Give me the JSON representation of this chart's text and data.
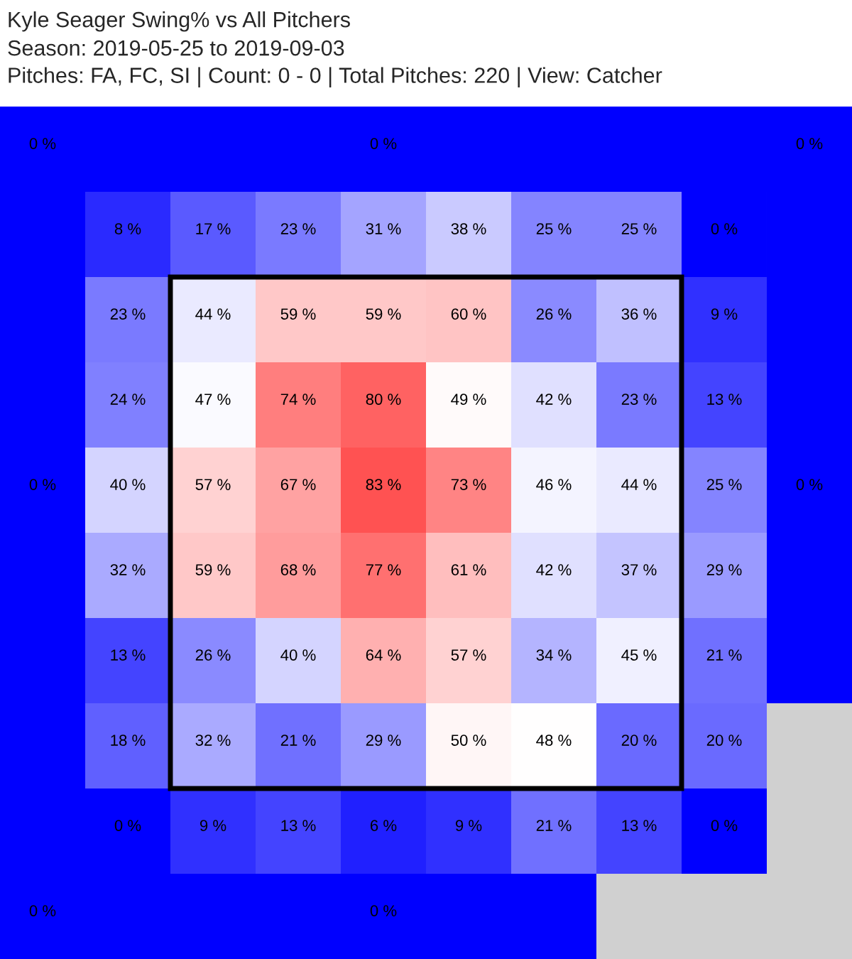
{
  "chart_data": {
    "type": "heatmap",
    "title": "Kyle Seager Swing% vs All Pitchers",
    "subtitle": "Season: 2019-05-25 to 2019-09-03\nPitches: FA, FC, SI | Count: 0 - 0 | Total Pitches: 220 | View: Catcher",
    "categories": [
      null,
      null,
      null,
      null,
      null,
      null,
      null,
      null,
      null,
      null
    ],
    "y_categories": [
      null,
      null,
      null,
      null,
      null,
      null,
      null,
      null,
      null,
      null
    ],
    "tick_labels": false,
    "cells": [
      [
        0,
        null,
        null,
        null,
        0,
        null,
        null,
        null,
        null,
        0
      ],
      [
        null,
        8,
        17,
        23,
        31,
        38,
        25,
        25,
        0,
        null
      ],
      [
        null,
        23,
        44,
        59,
        59,
        60,
        26,
        36,
        9,
        null
      ],
      [
        null,
        24,
        47,
        74,
        80,
        49,
        42,
        23,
        13,
        null
      ],
      [
        0,
        40,
        57,
        67,
        83,
        73,
        46,
        44,
        25,
        0
      ],
      [
        null,
        32,
        59,
        68,
        77,
        61,
        42,
        37,
        29,
        null
      ],
      [
        null,
        13,
        26,
        40,
        64,
        57,
        34,
        45,
        21,
        null
      ],
      [
        null,
        18,
        32,
        21,
        29,
        50,
        48,
        20,
        20,
        null
      ],
      [
        null,
        0,
        9,
        13,
        6,
        9,
        21,
        13,
        0,
        null
      ],
      [
        0,
        null,
        null,
        null,
        0,
        null,
        null,
        null,
        null,
        null
      ]
    ],
    "cell_labels": [
      [
        "0 %",
        null,
        null,
        null,
        "0 %",
        null,
        null,
        null,
        null,
        "0 %"
      ],
      [
        null,
        "8 %",
        "17 %",
        "23 %",
        "31 %",
        "38 %",
        "25 %",
        "25 %",
        "0 %",
        null
      ],
      [
        null,
        "23 %",
        "44 %",
        "59 %",
        "59 %",
        "60 %",
        "26 %",
        "36 %",
        "9 %",
        null
      ],
      [
        null,
        "24 %",
        "47 %",
        "74 %",
        "80 %",
        "49 %",
        "42 %",
        "23 %",
        "13 %",
        null
      ],
      [
        "0 %",
        "40 %",
        "57 %",
        "67 %",
        "83 %",
        "73 %",
        "46 %",
        "44 %",
        "25 %",
        "0 %"
      ],
      [
        null,
        "32 %",
        "59 %",
        "68 %",
        "77 %",
        "61 %",
        "42 %",
        "37 %",
        "29 %",
        null
      ],
      [
        null,
        "13 %",
        "26 %",
        "40 %",
        "64 %",
        "57 %",
        "34 %",
        "45 %",
        "21 %",
        null
      ],
      [
        null,
        "18 %",
        "32 %",
        "21 %",
        "29 %",
        "50 %",
        "48 %",
        "20 %",
        "20 %",
        null
      ],
      [
        null,
        "0 %",
        "9 %",
        "13 %",
        "6 %",
        "9 %",
        "21 %",
        "13 %",
        "0 %",
        null
      ],
      [
        "0 %",
        null,
        null,
        null,
        "0 %",
        null,
        null,
        null,
        null,
        null
      ]
    ]
  }
}
